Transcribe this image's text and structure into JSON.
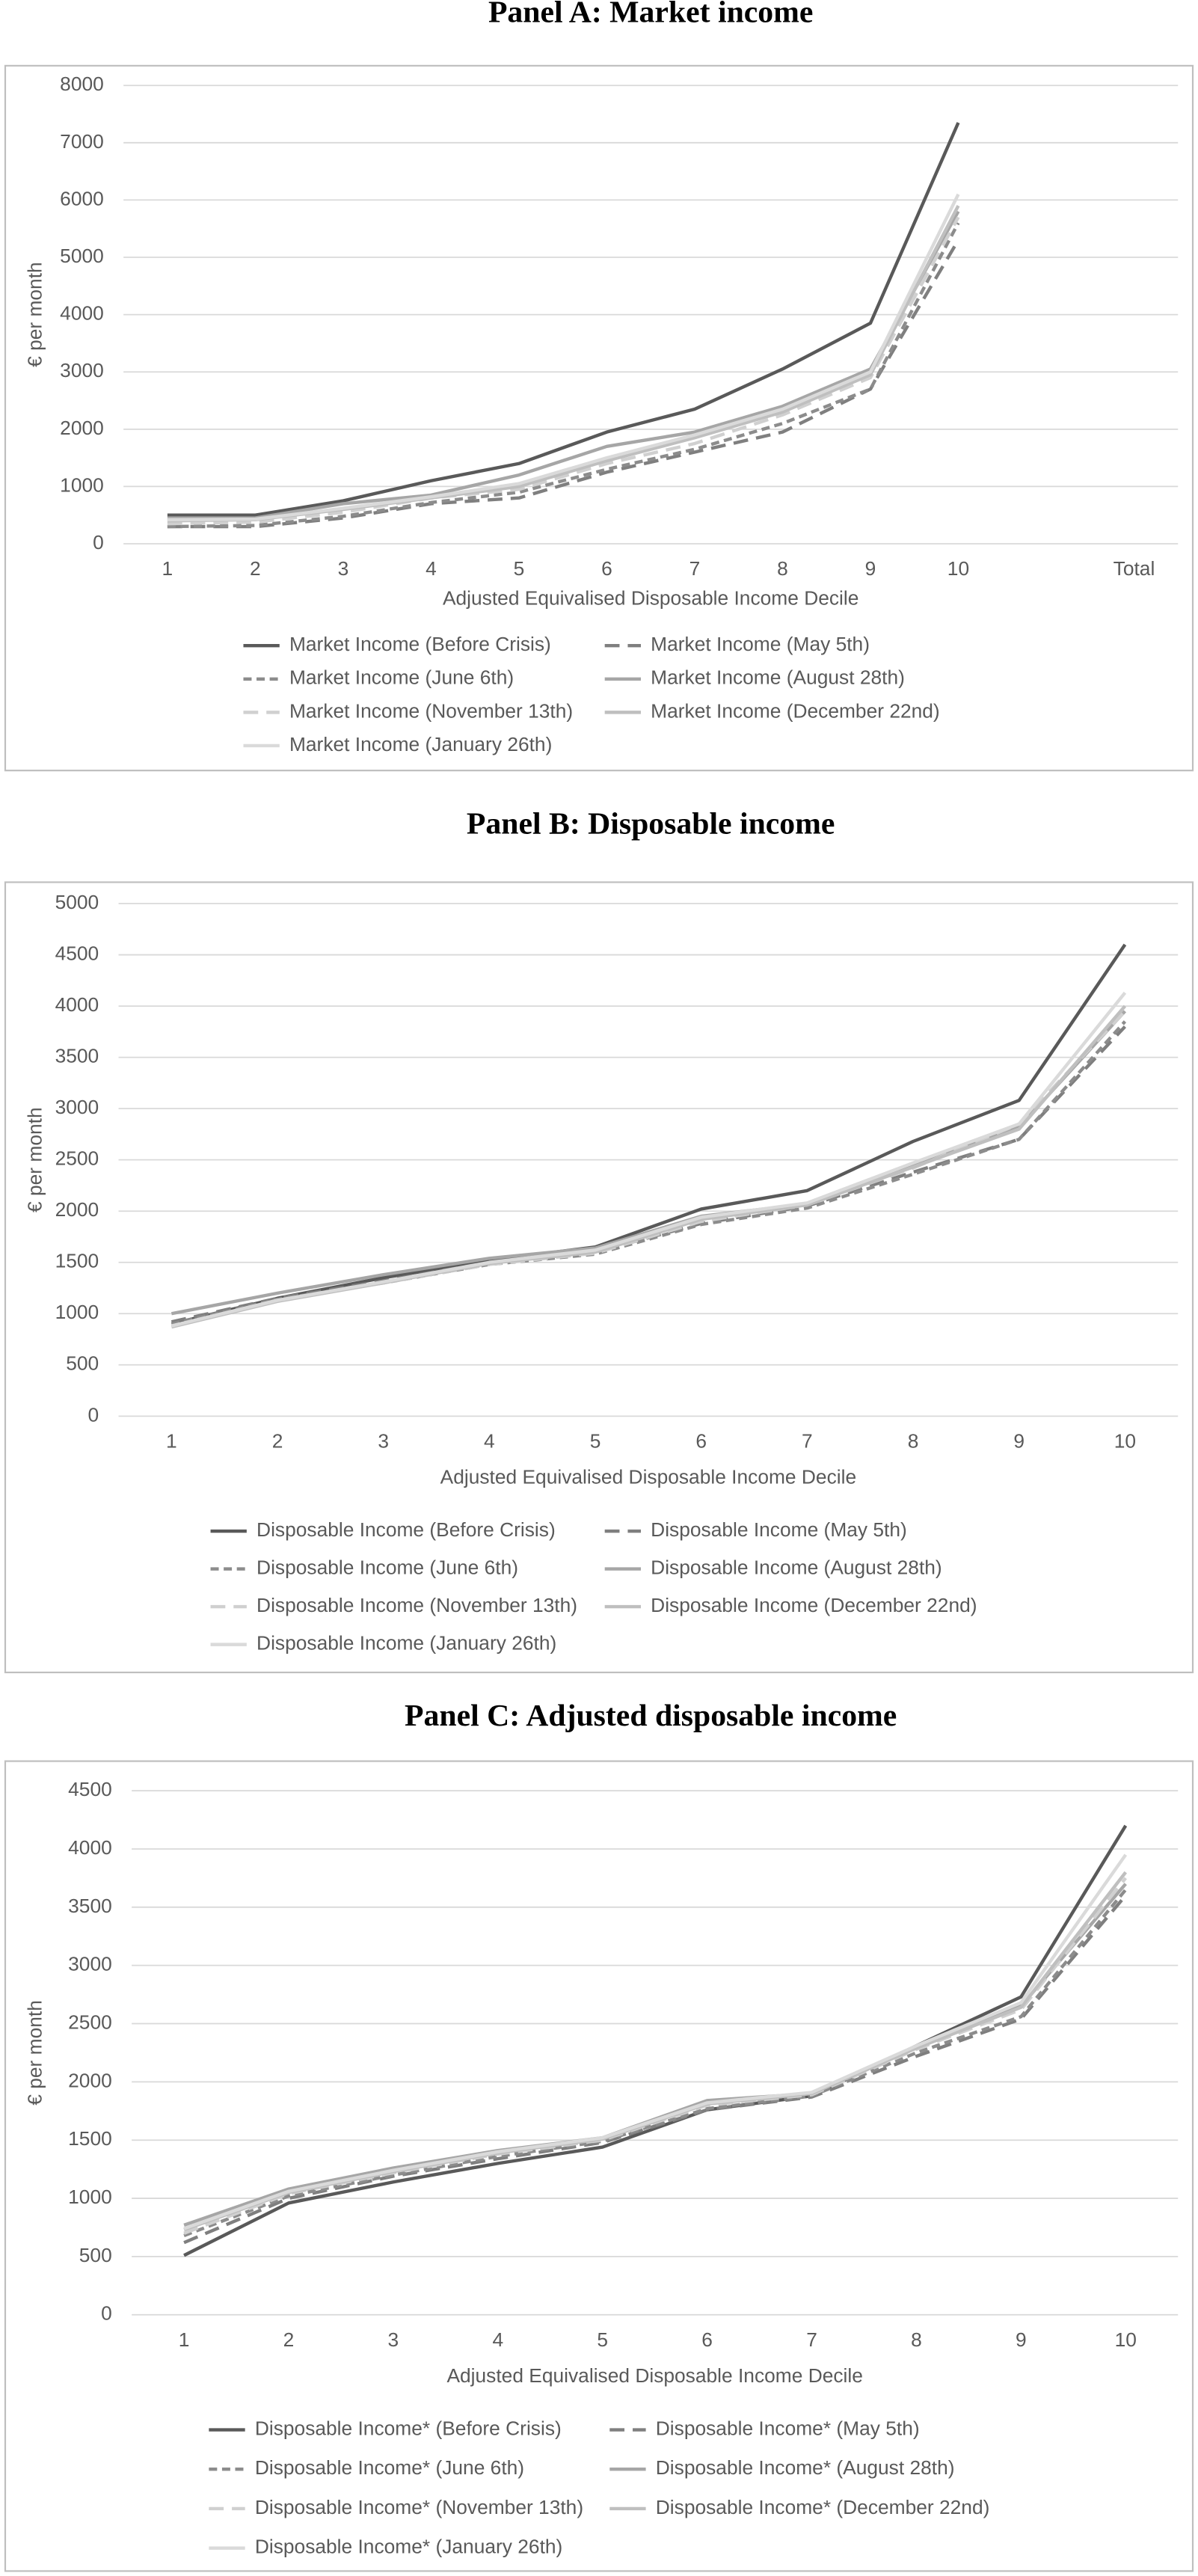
{
  "chart_data": [
    {
      "type": "line",
      "title": "Panel A: Market income",
      "x_label": "Adjusted Equivalised Disposable Income Decile",
      "y_label": "€ per month",
      "categories": [
        "1",
        "2",
        "3",
        "4",
        "5",
        "6",
        "7",
        "8",
        "9",
        "10",
        null,
        "Total"
      ],
      "ylim": [
        0,
        8000
      ],
      "yticks": [
        0,
        1000,
        2000,
        3000,
        4000,
        5000,
        6000,
        7000,
        8000
      ],
      "grid": true,
      "series": [
        {
          "name": "Market Income (Before Crisis)",
          "color": "#595959",
          "values": [
            500,
            500,
            750,
            1100,
            1400,
            1950,
            2350,
            3050,
            3850,
            7350,
            null,
            null
          ]
        },
        {
          "name": "Market Income (May 5th)",
          "color": "#7f7f7f",
          "dash": "long",
          "values": [
            300,
            300,
            450,
            700,
            800,
            1250,
            1600,
            1950,
            2700,
            5300,
            null,
            null
          ]
        },
        {
          "name": "Market Income (June 6th)",
          "color": "#8c8c8c",
          "dash": "short",
          "values": [
            300,
            320,
            480,
            720,
            900,
            1300,
            1650,
            2100,
            2700,
            5600,
            null,
            null
          ]
        },
        {
          "name": "Market Income (August 28th)",
          "color": "#a6a6a6",
          "values": [
            450,
            450,
            700,
            850,
            1200,
            1700,
            1950,
            2400,
            3050,
            5800,
            null,
            null
          ]
        },
        {
          "name": "Market Income (November 13th)",
          "color": "#d0d0d0",
          "dash": "long",
          "values": [
            350,
            380,
            550,
            800,
            950,
            1400,
            1750,
            2250,
            2900,
            5700,
            null,
            null
          ]
        },
        {
          "name": "Market Income (December 22nd)",
          "color": "#bfbfbf",
          "values": [
            400,
            420,
            600,
            800,
            1000,
            1450,
            1850,
            2300,
            2950,
            5900,
            null,
            null
          ]
        },
        {
          "name": "Market Income (January 26th)",
          "color": "#dadada",
          "values": [
            420,
            430,
            620,
            820,
            1050,
            1500,
            1900,
            2350,
            3000,
            6100,
            null,
            null
          ]
        }
      ]
    },
    {
      "type": "line",
      "title": "Panel B: Disposable income",
      "x_label": "Adjusted Equivalised Disposable Income Decile",
      "y_label": "€ per month",
      "categories": [
        "1",
        "2",
        "3",
        "4",
        "5",
        "6",
        "7",
        "8",
        "9",
        "10"
      ],
      "ylim": [
        0,
        5000
      ],
      "yticks": [
        0,
        500,
        1000,
        1500,
        2000,
        2500,
        3000,
        3500,
        4000,
        4500,
        5000
      ],
      "grid": true,
      "series": [
        {
          "name": "Disposable Income (Before Crisis)",
          "color": "#595959",
          "values": [
            900,
            1150,
            1350,
            1520,
            1650,
            2020,
            2200,
            2680,
            3080,
            4600
          ]
        },
        {
          "name": "Disposable Income (May 5th)",
          "color": "#7f7f7f",
          "dash": "long",
          "values": [
            920,
            1150,
            1320,
            1500,
            1600,
            1880,
            2050,
            2380,
            2700,
            3800
          ]
        },
        {
          "name": "Disposable Income (June 6th)",
          "color": "#8c8c8c",
          "dash": "short",
          "values": [
            900,
            1140,
            1300,
            1480,
            1580,
            1870,
            2030,
            2360,
            2700,
            3850
          ]
        },
        {
          "name": "Disposable Income (August 28th)",
          "color": "#a6a6a6",
          "values": [
            1000,
            1200,
            1380,
            1540,
            1640,
            1950,
            2070,
            2450,
            2820,
            3950
          ]
        },
        {
          "name": "Disposable Income (November 13th)",
          "color": "#d0d0d0",
          "dash": "long",
          "values": [
            880,
            1130,
            1300,
            1480,
            1590,
            1900,
            2060,
            2420,
            2850,
            3950
          ]
        },
        {
          "name": "Disposable Income (December 22nd)",
          "color": "#bfbfbf",
          "values": [
            870,
            1120,
            1300,
            1490,
            1600,
            1920,
            2060,
            2430,
            2800,
            4000
          ]
        },
        {
          "name": "Disposable Income (January 26th)",
          "color": "#dadada",
          "values": [
            880,
            1130,
            1310,
            1500,
            1620,
            1940,
            2080,
            2470,
            2850,
            4130
          ]
        }
      ]
    },
    {
      "type": "line",
      "title": "Panel C: Adjusted disposable income",
      "x_label": "Adjusted Equivalised Disposable Income Decile",
      "y_label": "€ per month",
      "categories": [
        "1",
        "2",
        "3",
        "4",
        "5",
        "6",
        "7",
        "8",
        "9",
        "10"
      ],
      "ylim": [
        0,
        4500
      ],
      "yticks": [
        0,
        500,
        1000,
        1500,
        2000,
        2500,
        3000,
        3500,
        4000,
        4500
      ],
      "grid": true,
      "series": [
        {
          "name": "Disposable Income* (Before Crisis)",
          "color": "#595959",
          "values": [
            510,
            960,
            1140,
            1300,
            1440,
            1760,
            1880,
            2310,
            2730,
            4200
          ]
        },
        {
          "name": "Disposable Income* (May 5th)",
          "color": "#7f7f7f",
          "dash": "long",
          "values": [
            620,
            1000,
            1190,
            1340,
            1480,
            1760,
            1870,
            2220,
            2540,
            3600
          ]
        },
        {
          "name": "Disposable Income* (June 6th)",
          "color": "#8c8c8c",
          "dash": "short",
          "values": [
            680,
            1020,
            1200,
            1360,
            1490,
            1770,
            1880,
            2250,
            2560,
            3650
          ]
        },
        {
          "name": "Disposable Income* (August 28th)",
          "color": "#a6a6a6",
          "values": [
            770,
            1080,
            1260,
            1410,
            1520,
            1840,
            1900,
            2300,
            2650,
            3700
          ]
        },
        {
          "name": "Disposable Income* (November 13th)",
          "color": "#d0d0d0",
          "dash": "long",
          "values": [
            700,
            1040,
            1220,
            1380,
            1500,
            1800,
            1890,
            2280,
            2620,
            3750
          ]
        },
        {
          "name": "Disposable Income* (December 22nd)",
          "color": "#bfbfbf",
          "values": [
            730,
            1050,
            1230,
            1390,
            1510,
            1810,
            1900,
            2290,
            2640,
            3800
          ]
        },
        {
          "name": "Disposable Income* (January 26th)",
          "color": "#dadada",
          "values": [
            740,
            1060,
            1240,
            1400,
            1520,
            1820,
            1910,
            2310,
            2680,
            3950
          ]
        }
      ]
    }
  ]
}
